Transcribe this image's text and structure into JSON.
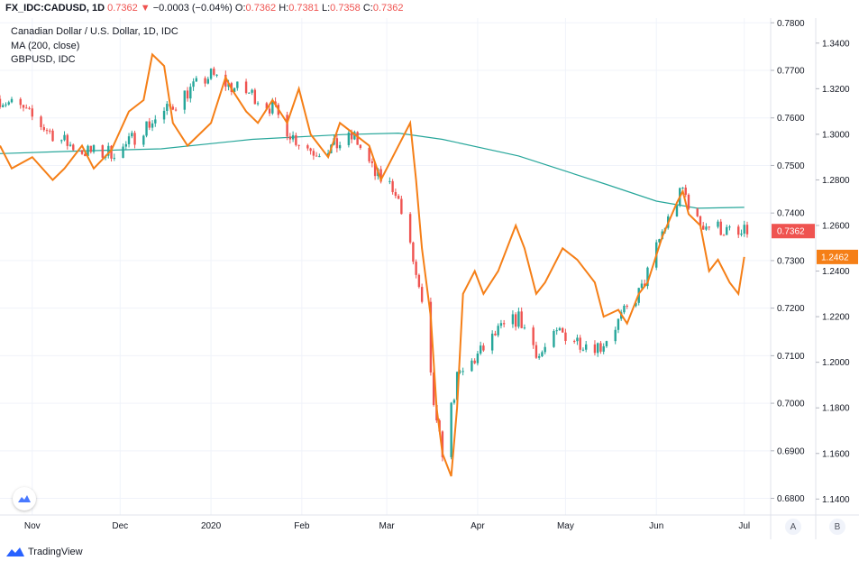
{
  "header": {
    "symbol": "FX_IDC:CADUSD, 1D",
    "last": "0.7362",
    "arrow": "▼",
    "change": "−0.0003 (−0.04%)",
    "o_label": "O:",
    "o": "0.7362",
    "h_label": "H:",
    "h": "0.7381",
    "l_label": "L:",
    "l": "0.7358",
    "c_label": "C:",
    "c": "0.7362"
  },
  "legend": {
    "line1": "Canadian Dollar / U.S. Dollar, 1D, IDC",
    "line2": "MA (200, close)",
    "line3": "GBPUSD, IDC"
  },
  "footer": {
    "brand": "TradingView",
    "brand_icon": "tradingview-logo-icon"
  },
  "scale_buttons": {
    "a": "A",
    "b": "B"
  },
  "colors": {
    "up": "#26a69a",
    "down": "#ef5350",
    "ma": "#26a69a",
    "gbp": "#f57f17",
    "price_label": "#ef5350",
    "gbp_label": "#f57f17"
  },
  "chart_data": {
    "type": "line",
    "title": "Canadian Dollar / U.S. Dollar, 1D, IDC",
    "x_ticks": [
      "Nov",
      "Dec",
      "2020",
      "Feb",
      "Mar",
      "Apr",
      "May",
      "Jun",
      "Jul"
    ],
    "y_left_ticks": [
      "0.7800",
      "0.7700",
      "0.7600",
      "0.7500",
      "0.7400",
      "0.7300",
      "0.7200",
      "0.7100",
      "0.7000",
      "0.6900",
      "0.6800"
    ],
    "y_right_ticks": [
      "1.3400",
      "1.3200",
      "1.3000",
      "1.2800",
      "1.2600",
      "1.2400",
      "1.2200",
      "1.2000",
      "1.1800",
      "1.1600",
      "1.1400"
    ],
    "ylim_cadusd": [
      0.6765,
      0.781
    ],
    "ylim_gbpusd": [
      1.133,
      1.351
    ],
    "x_range": [
      "2019-10-21",
      "2020-07-10"
    ],
    "last_price_label": "0.7362",
    "gbp_last_label": "1.2462",
    "series": [
      {
        "name": "Canadian Dollar / U.S. Dollar, 1D, IDC",
        "kind": "candles",
        "points": [
          [
            "2019-10-21",
            0.764
          ],
          [
            "2019-10-28",
            0.762
          ],
          [
            "2019-11-04",
            0.7585
          ],
          [
            "2019-11-11",
            0.7553
          ],
          [
            "2019-11-18",
            0.753
          ],
          [
            "2019-11-25",
            0.7525
          ],
          [
            "2019-12-02",
            0.7535
          ],
          [
            "2019-12-09",
            0.758
          ],
          [
            "2019-12-16",
            0.761
          ],
          [
            "2019-12-23",
            0.765
          ],
          [
            "2020-01-01",
            0.769
          ],
          [
            "2020-01-08",
            0.7665
          ],
          [
            "2020-01-15",
            0.765
          ],
          [
            "2020-01-22",
            0.762
          ],
          [
            "2020-01-29",
            0.756
          ],
          [
            "2020-02-05",
            0.753
          ],
          [
            "2020-02-12",
            0.754
          ],
          [
            "2020-02-19",
            0.756
          ],
          [
            "2020-02-26",
            0.748
          ],
          [
            "2020-03-04",
            0.745
          ],
          [
            "2020-03-10",
            0.73
          ],
          [
            "2020-03-13",
            0.72
          ],
          [
            "2020-03-18",
            0.695
          ],
          [
            "2020-03-20",
            0.69
          ],
          [
            "2020-03-25",
            0.705
          ],
          [
            "2020-04-01",
            0.71
          ],
          [
            "2020-04-08",
            0.715
          ],
          [
            "2020-04-15",
            0.718
          ],
          [
            "2020-04-22",
            0.71
          ],
          [
            "2020-04-29",
            0.715
          ],
          [
            "2020-05-06",
            0.713
          ],
          [
            "2020-05-13",
            0.712
          ],
          [
            "2020-05-20",
            0.718
          ],
          [
            "2020-05-27",
            0.724
          ],
          [
            "2020-06-03",
            0.736
          ],
          [
            "2020-06-10",
            0.745
          ],
          [
            "2020-06-15",
            0.738
          ],
          [
            "2020-06-22",
            0.737
          ],
          [
            "2020-06-29",
            0.735
          ],
          [
            "2020-07-02",
            0.7362
          ]
        ]
      },
      {
        "name": "MA (200, close)",
        "kind": "line",
        "points": [
          [
            "2019-10-21",
            0.7525
          ],
          [
            "2019-11-15",
            0.753
          ],
          [
            "2019-12-15",
            0.7535
          ],
          [
            "2020-01-15",
            0.7555
          ],
          [
            "2020-02-15",
            0.7565
          ],
          [
            "2020-03-05",
            0.7568
          ],
          [
            "2020-03-20",
            0.7555
          ],
          [
            "2020-04-15",
            0.752
          ],
          [
            "2020-05-15",
            0.746
          ],
          [
            "2020-06-01",
            0.7425
          ],
          [
            "2020-06-15",
            0.741
          ],
          [
            "2020-07-01",
            0.7412
          ]
        ]
      },
      {
        "name": "GBPUSD, IDC",
        "kind": "line",
        "points": [
          [
            "2019-10-21",
            1.295
          ],
          [
            "2019-10-25",
            1.285
          ],
          [
            "2019-11-01",
            1.29
          ],
          [
            "2019-11-08",
            1.28
          ],
          [
            "2019-11-12",
            1.285
          ],
          [
            "2019-11-18",
            1.295
          ],
          [
            "2019-11-22",
            1.285
          ],
          [
            "2019-11-28",
            1.293
          ],
          [
            "2019-12-04",
            1.31
          ],
          [
            "2019-12-09",
            1.315
          ],
          [
            "2019-12-12",
            1.335
          ],
          [
            "2019-12-16",
            1.33
          ],
          [
            "2019-12-19",
            1.305
          ],
          [
            "2019-12-24",
            1.295
          ],
          [
            "2020-01-01",
            1.305
          ],
          [
            "2020-01-06",
            1.325
          ],
          [
            "2020-01-08",
            1.32
          ],
          [
            "2020-01-13",
            1.31
          ],
          [
            "2020-01-17",
            1.305
          ],
          [
            "2020-01-22",
            1.315
          ],
          [
            "2020-01-27",
            1.305
          ],
          [
            "2020-01-31",
            1.32
          ],
          [
            "2020-02-04",
            1.3
          ],
          [
            "2020-02-10",
            1.29
          ],
          [
            "2020-02-14",
            1.305
          ],
          [
            "2020-02-19",
            1.3
          ],
          [
            "2020-02-24",
            1.295
          ],
          [
            "2020-02-28",
            1.28
          ],
          [
            "2020-03-03",
            1.29
          ],
          [
            "2020-03-09",
            1.305
          ],
          [
            "2020-03-11",
            1.28
          ],
          [
            "2020-03-13",
            1.25
          ],
          [
            "2020-03-16",
            1.22
          ],
          [
            "2020-03-18",
            1.18
          ],
          [
            "2020-03-20",
            1.16
          ],
          [
            "2020-03-23",
            1.15
          ],
          [
            "2020-03-25",
            1.18
          ],
          [
            "2020-03-27",
            1.23
          ],
          [
            "2020-03-31",
            1.24
          ],
          [
            "2020-04-03",
            1.23
          ],
          [
            "2020-04-08",
            1.24
          ],
          [
            "2020-04-14",
            1.26
          ],
          [
            "2020-04-17",
            1.25
          ],
          [
            "2020-04-21",
            1.23
          ],
          [
            "2020-04-24",
            1.235
          ],
          [
            "2020-04-30",
            1.25
          ],
          [
            "2020-05-05",
            1.245
          ],
          [
            "2020-05-11",
            1.235
          ],
          [
            "2020-05-14",
            1.22
          ],
          [
            "2020-05-19",
            1.223
          ],
          [
            "2020-05-22",
            1.217
          ],
          [
            "2020-05-26",
            1.23
          ],
          [
            "2020-05-29",
            1.235
          ],
          [
            "2020-06-03",
            1.255
          ],
          [
            "2020-06-08",
            1.27
          ],
          [
            "2020-06-10",
            1.275
          ],
          [
            "2020-06-12",
            1.265
          ],
          [
            "2020-06-16",
            1.26
          ],
          [
            "2020-06-19",
            1.24
          ],
          [
            "2020-06-22",
            1.245
          ],
          [
            "2020-06-26",
            1.235
          ],
          [
            "2020-06-29",
            1.23
          ],
          [
            "2020-07-01",
            1.2462
          ]
        ]
      }
    ]
  }
}
